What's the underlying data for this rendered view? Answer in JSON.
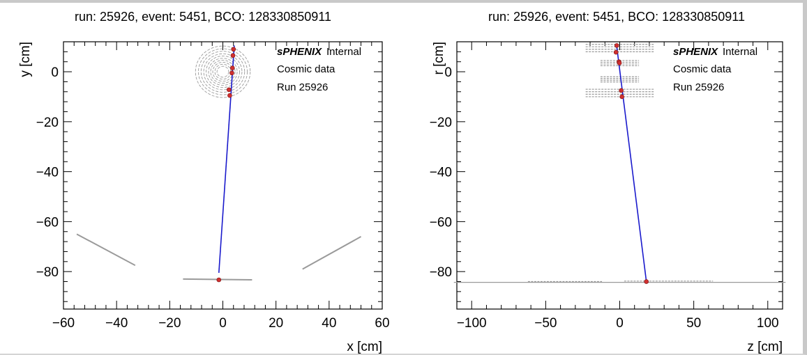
{
  "chart_data": [
    {
      "type": "scatter",
      "title": "run: 25926, event: 5451, BCO: 128330850911",
      "xlabel": "x [cm]",
      "ylabel": "y [cm]",
      "xlim": [
        -60,
        60
      ],
      "ylim": [
        -95,
        12
      ],
      "xticks": [
        -60,
        -40,
        -20,
        0,
        20,
        40,
        60
      ],
      "yticks": [
        -80,
        -60,
        -40,
        -20,
        0
      ],
      "legend": {
        "bold": "sPHENIX",
        "lines": [
          "Internal",
          "Cosmic data",
          "Run 25926"
        ],
        "placement": "top-right"
      },
      "series": [
        {
          "kind": "hits",
          "color": "#d03030",
          "points": [
            [
              4.0,
              9.0
            ],
            [
              3.8,
              6.5
            ],
            [
              3.6,
              1.5
            ],
            [
              3.4,
              -0.5
            ],
            [
              2.3,
              -7.2
            ],
            [
              2.6,
              -9.5
            ],
            [
              -1.5,
              -83.3
            ]
          ]
        },
        {
          "kind": "track",
          "color": "#1a1acc",
          "points": [
            [
              4.3,
              10.5
            ],
            [
              -1.5,
              -80.5
            ]
          ]
        }
      ],
      "detector": {
        "circles": [
          {
            "cx": 0,
            "cy": 0,
            "r": [
              2.2,
              3.0,
              3.8,
              4.6,
              5.4,
              6.3,
              7.2,
              8.2,
              9.2,
              10.3
            ]
          }
        ],
        "lines": [
          [
            [
              -55,
              -65
            ],
            [
              -33,
              -77.5
            ]
          ],
          [
            [
              30,
              -79
            ],
            [
              52,
              -66
            ]
          ],
          [
            [
              -15,
              -83
            ],
            [
              11,
              -83.3
            ]
          ]
        ],
        "color": "#9a9a9a"
      }
    },
    {
      "type": "scatter",
      "title": "run: 25926, event: 5451, BCO: 128330850911",
      "xlabel": "z [cm]",
      "ylabel": "r [cm]",
      "xlim": [
        -110,
        110
      ],
      "ylim": [
        -95,
        12
      ],
      "xticks": [
        -100,
        -50,
        0,
        50,
        100
      ],
      "yticks": [
        -80,
        -60,
        -40,
        -20,
        0
      ],
      "legend": {
        "bold": "sPHENIX",
        "lines": [
          "Internal",
          "Cosmic data",
          "Run 25926"
        ],
        "placement": "top-right"
      },
      "series": [
        {
          "kind": "hits",
          "color": "#d03030",
          "points": [
            [
              -2.0,
              10.5
            ],
            [
              -2.5,
              7.8
            ],
            [
              -0.5,
              4.0
            ],
            [
              -0.2,
              3.5
            ],
            [
              1.0,
              -7.5
            ],
            [
              1.5,
              -10.0
            ],
            [
              18.0,
              -84.0
            ]
          ]
        },
        {
          "kind": "track",
          "color": "#1a1acc",
          "points": [
            [
              -2.2,
              11.0
            ],
            [
              18.0,
              -84.0
            ]
          ]
        }
      ],
      "detector": {
        "hbars": [
          {
            "z": [
              -23,
              23
            ],
            "r": 11.0
          },
          {
            "z": [
              -23,
              23
            ],
            "r": 10.0
          },
          {
            "z": [
              -23,
              23
            ],
            "r": 9.0
          },
          {
            "z": [
              -23,
              23
            ],
            "r": 8.0
          },
          {
            "z": [
              -13,
              13
            ],
            "r": 4.5
          },
          {
            "z": [
              -13,
              13
            ],
            "r": 3.8
          },
          {
            "z": [
              -13,
              13
            ],
            "r": 3.1
          },
          {
            "z": [
              -13,
              13
            ],
            "r": 2.4
          },
          {
            "z": [
              -13,
              13
            ],
            "r": -2.0
          },
          {
            "z": [
              -13,
              13
            ],
            "r": -2.7
          },
          {
            "z": [
              -13,
              13
            ],
            "r": -3.4
          },
          {
            "z": [
              -13,
              13
            ],
            "r": -4.1
          },
          {
            "z": [
              -23,
              23
            ],
            "r": -7.0
          },
          {
            "z": [
              -23,
              23
            ],
            "r": -8.0
          },
          {
            "z": [
              -23,
              23
            ],
            "r": -9.0
          },
          {
            "z": [
              -23,
              23
            ],
            "r": -10.0
          },
          {
            "z": [
              -112,
              112
            ],
            "r": -84.3
          },
          {
            "z": [
              -62,
              -12
            ],
            "r": -84.0
          },
          {
            "z": [
              3,
              63
            ],
            "r": -83.8
          }
        ],
        "color": "#9a9a9a"
      }
    }
  ]
}
